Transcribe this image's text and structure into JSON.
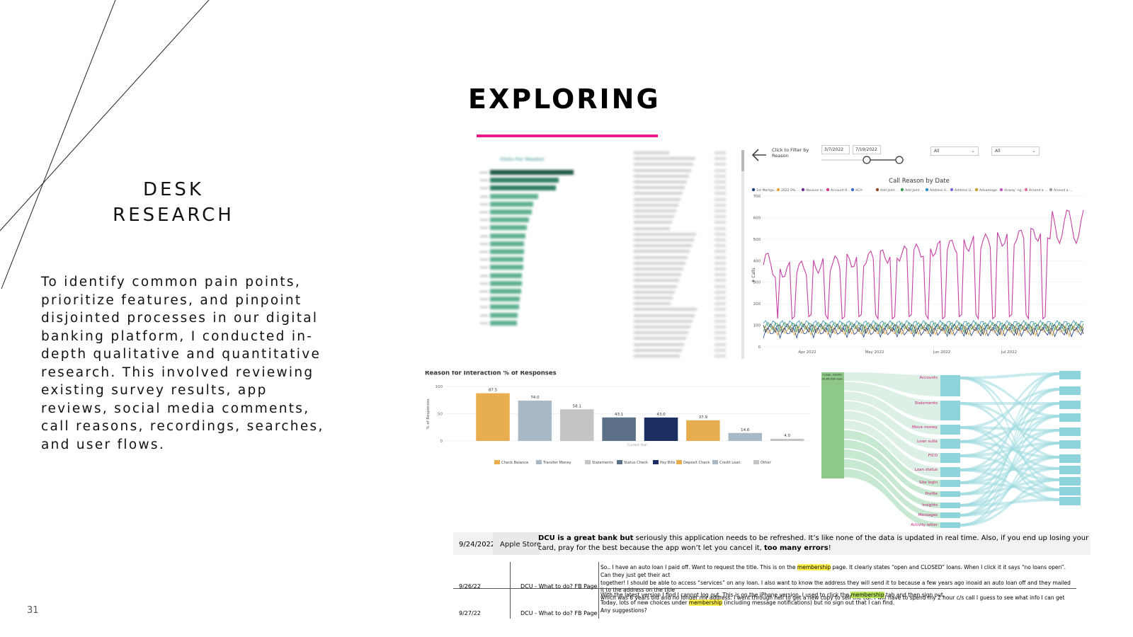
{
  "slide": {
    "title": "EXPLORING",
    "accent_color": "#ec1c8c",
    "section_heading_line1": "DESK",
    "section_heading_line2": "RESEARCH",
    "body": "To identify common pain points, prioritize features, and pinpoint disjointed processes in our digital banking platform, I conducted in-depth qualitative and quantitative research. This involved reviewing existing survey results, app reviews, social media comments, call reasons, recordings, searches, and user flows.",
    "page_number": "31"
  },
  "clicks_chart": {
    "title": "Clicks Per Member",
    "bar_color": "#5fb08f",
    "values": [
      100,
      82,
      79,
      58,
      52,
      50,
      47,
      44,
      42,
      41,
      41,
      40,
      40,
      38,
      38,
      37,
      36,
      35,
      33,
      32
    ]
  },
  "call_dashboard": {
    "filter_label": "Click to Filter by Reason",
    "back_icon": "arrow-left-icon",
    "date_start": "3/7/2022",
    "date_end": "7/19/2022",
    "select_1": "All",
    "select_2": "All",
    "chart_title": "Call Reason by Date",
    "legend": [
      "1st Mortga...",
      "2022 0% ...",
      "Abusive In...",
      "Account H...",
      "ACH",
      "Add Joint ...",
      "Add Joint ...",
      "Address U...",
      "Address U...",
      "Advantage ...",
      "Airway' ng...",
      "Amend a ...",
      "Amend a ..."
    ],
    "legend_colors": [
      "#1f3c88",
      "#e8a33c",
      "#6a2c8f",
      "#d03b7f",
      "#3c6cc4",
      "#8d4b2b",
      "#3b9a4e",
      "#2f8fb9",
      "#7a6ad1",
      "#c4a12f",
      "#c05dc2",
      "#e06b9a",
      "#9b9b9b"
    ],
    "y_axis_label": "# Calls",
    "y_ticks": [
      "700",
      "600",
      "500",
      "400",
      "300",
      "200",
      "100",
      "0"
    ],
    "x_ticks": [
      "Apr 2022",
      "May 2022",
      "Jun 2022",
      "Jul 2022"
    ]
  },
  "chart_data": {
    "type": "bar",
    "title": "Reason for Interaction % of Responses",
    "xlabel": "Current Year",
    "ylabel": "% of Responses",
    "ylim": [
      0,
      100
    ],
    "y_ticks": [
      "100",
      "50",
      "0"
    ],
    "categories": [
      "Check Balance",
      "Transfer Money",
      "Statements",
      "Status Check",
      "Pay Bills",
      "Deposit Check",
      "Credit Loan",
      "Other"
    ],
    "values": [
      87.5,
      74.0,
      58.1,
      43.1,
      43.0,
      37.9,
      14.6,
      4.0
    ],
    "value_labels": [
      "87.5",
      "74.0",
      "58.1",
      "43.1",
      "43.0",
      "37.9",
      "14.6",
      "4.0"
    ],
    "colors": [
      "#e6ae4f",
      "#a9b8c5",
      "#c4c4c4",
      "#5c7188",
      "#1b2f63",
      "#e6ae4f",
      "#a9b8c5",
      "#c4c4c4"
    ]
  },
  "sankey": {
    "source_label": "1 page...bership",
    "source_sub": "84,460 Path views",
    "nodes": [
      "Accounts",
      "Statements",
      "Move money",
      "Loan suite",
      "FICO",
      "Loan status",
      "Site login",
      "Profile",
      "Insights",
      "Messages",
      "Activity letter"
    ],
    "node_color": "#c81d7a",
    "source_color": "#8fc98a",
    "mid_color": "#8fd3dc",
    "flow_color": "#9edbe0"
  },
  "reviews": [
    {
      "date": "9/24/2022",
      "source": "Apple Store",
      "bold_start": "DCU is a great bank but",
      "text": " seriously this application needs to be refreshed. It’s like none of the data is updated in real time. Also, if you end up losing your card, pray for the best because the app won’t let you cancel it, ",
      "bold_end": "too many errors",
      "tail": "!"
    },
    {
      "date": "9/26/22",
      "source": "DCU - What to do? FB Page",
      "line1_a": "So.. I have an auto loan I paid off. Want to request the title. This is on the ",
      "highlight": "membership",
      "line1_b": " page. It clearly states “open and CLOSED” loans. When I click it it says “no loans open”. Can they just get their act",
      "line2": "together! I should be able to access “services” on any loan. I also want to know the address they will send it to because a few years ago inoaid an auto loan off and they mailed it to the address on the title",
      "line3": "which was 6 years old and no longer my address. I went through hell to get a new copy to sell the car. I will have to spend my 2 hour c/s call I guess to see what info I can get"
    },
    {
      "date": "9/27/22",
      "source": "DCU - What to do? FB Page",
      "line1_a": "With the latest version I find I cannot log out. This is on the iPhone version. I used to click the ",
      "highlight": "membership",
      "line1_b": " tab and then sign out.",
      "line2_a": "Today, lots of new choices under ",
      "highlight2": "membership",
      "line2_b": " (including message notifications) but no sign out that I can find.",
      "line3": "Any suggestions?"
    }
  ]
}
